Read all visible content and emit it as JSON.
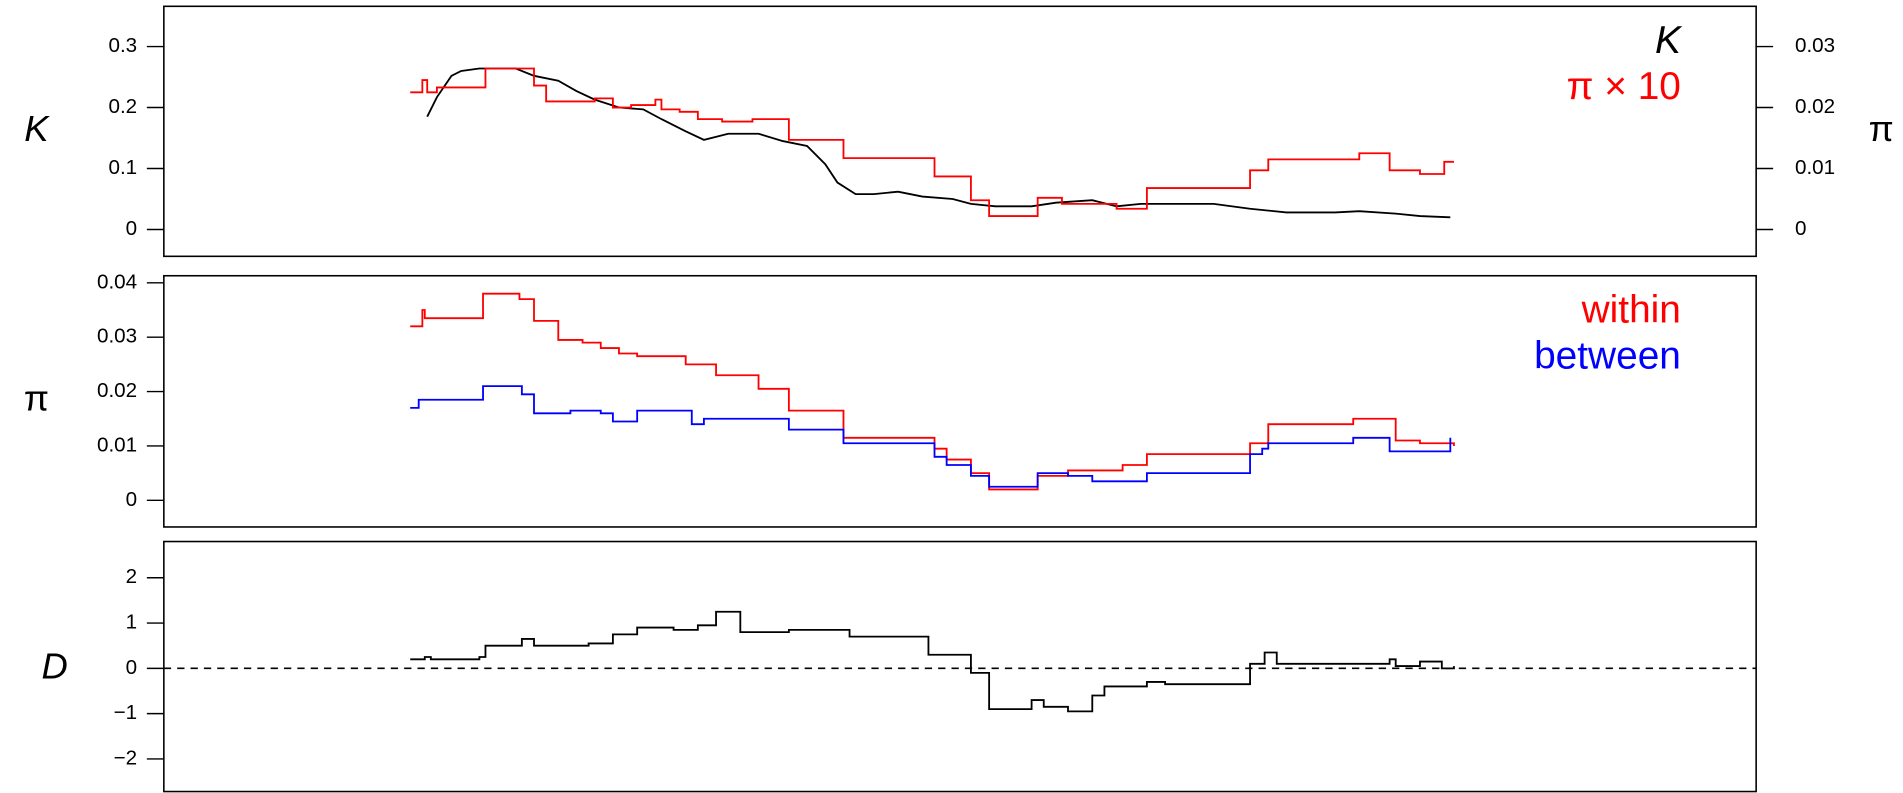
{
  "chart_data": [
    {
      "type": "line",
      "ylabel": "K",
      "y2label": "π",
      "xlim": [
        0,
        1312
      ],
      "ylim": [
        -0.044,
        0.366
      ],
      "yticks": [
        0,
        0.1,
        0.2,
        0.3
      ],
      "y2lim": [
        -0.0044,
        0.0366
      ],
      "y2ticks": [
        0,
        0.01,
        0.02,
        0.03
      ],
      "legend": "upper right",
      "series": [
        {
          "name": "K",
          "color": "#000000",
          "steps": false,
          "x": [
            217,
            225,
            237,
            245,
            260,
            290,
            305,
            325,
            340,
            355,
            375,
            395,
            410,
            430,
            445,
            465,
            490,
            510,
            530,
            545,
            555,
            570,
            585,
            605,
            625,
            650,
            665,
            685,
            715,
            735,
            765,
            785,
            805,
            865,
            895,
            925,
            965,
            985,
            1015,
            1035,
            1060
          ],
          "values": [
            0.185,
            0.217,
            0.252,
            0.26,
            0.264,
            0.264,
            0.252,
            0.244,
            0.227,
            0.213,
            0.2,
            0.197,
            0.181,
            0.161,
            0.147,
            0.157,
            0.157,
            0.145,
            0.137,
            0.107,
            0.077,
            0.058,
            0.058,
            0.062,
            0.054,
            0.05,
            0.042,
            0.038,
            0.038,
            0.044,
            0.048,
            0.038,
            0.042,
            0.042,
            0.034,
            0.028,
            0.028,
            0.03,
            0.026,
            0.022,
            0.02
          ]
        },
        {
          "name": "π × 10",
          "color": "#ff0000",
          "axis": "y2",
          "steps": true,
          "x": [
            203,
            213,
            217,
            225,
            265,
            305,
            315,
            355,
            370,
            385,
            405,
            410,
            425,
            440,
            460,
            485,
            515,
            560,
            635,
            665,
            680,
            720,
            740,
            785,
            810,
            895,
            910,
            985,
            1010,
            1035,
            1055,
            1063
          ],
          "values": [
            0.0225,
            0.0245,
            0.0225,
            0.0233,
            0.0264,
            0.0236,
            0.021,
            0.0215,
            0.02,
            0.0204,
            0.0213,
            0.0197,
            0.0193,
            0.0181,
            0.0177,
            0.0181,
            0.0147,
            0.0117,
            0.0087,
            0.0048,
            0.0022,
            0.0052,
            0.0042,
            0.0034,
            0.0068,
            0.0097,
            0.0115,
            0.0125,
            0.0097,
            0.0091,
            0.0111,
            0.0111
          ]
        }
      ]
    },
    {
      "type": "line",
      "ylabel": "π",
      "xlim": [
        0,
        1312
      ],
      "ylim": [
        -0.0049,
        0.0413
      ],
      "yticks": [
        0,
        0.01,
        0.02,
        0.03,
        0.04
      ],
      "legend": "upper right",
      "series": [
        {
          "name": "within",
          "color": "#ff0000",
          "steps": true,
          "x": [
            203,
            213,
            215,
            263,
            293,
            305,
            325,
            345,
            360,
            375,
            390,
            430,
            455,
            490,
            515,
            560,
            635,
            645,
            665,
            680,
            720,
            745,
            790,
            810,
            895,
            910,
            980,
            1015,
            1035,
            1063
          ],
          "values": [
            0.032,
            0.035,
            0.0335,
            0.038,
            0.037,
            0.033,
            0.0295,
            0.029,
            0.028,
            0.027,
            0.0265,
            0.025,
            0.023,
            0.0205,
            0.0165,
            0.0115,
            0.0095,
            0.0075,
            0.005,
            0.002,
            0.0045,
            0.0055,
            0.0065,
            0.0085,
            0.0105,
            0.014,
            0.015,
            0.011,
            0.0105,
            0.01
          ]
        },
        {
          "name": "between",
          "color": "#0000ff",
          "steps": true,
          "x": [
            203,
            210,
            263,
            295,
            305,
            335,
            360,
            370,
            390,
            435,
            445,
            485,
            515,
            560,
            635,
            645,
            665,
            680,
            720,
            745,
            765,
            810,
            895,
            905,
            910,
            980,
            1010,
            1060
          ],
          "values": [
            0.017,
            0.0185,
            0.021,
            0.0195,
            0.016,
            0.0165,
            0.016,
            0.0145,
            0.0165,
            0.014,
            0.015,
            0.015,
            0.013,
            0.0105,
            0.008,
            0.0065,
            0.0045,
            0.0025,
            0.005,
            0.0045,
            0.0035,
            0.005,
            0.0085,
            0.0095,
            0.0105,
            0.0115,
            0.009,
            0.0115
          ]
        }
      ]
    },
    {
      "type": "line",
      "ylabel": "D",
      "xlim": [
        0,
        1312
      ],
      "ylim": [
        -2.72,
        2.8
      ],
      "yticks": [
        {
          "value": -2,
          "label": "−2"
        },
        {
          "value": -1,
          "label": "−1"
        },
        0,
        1,
        2
      ],
      "reference_line": {
        "y": 0,
        "style": "dashed"
      },
      "series": [
        {
          "color": "#000000",
          "steps": true,
          "x": [
            203,
            215,
            220,
            260,
            265,
            295,
            305,
            350,
            370,
            390,
            420,
            440,
            455,
            475,
            515,
            565,
            630,
            665,
            680,
            715,
            725,
            745,
            765,
            775,
            810,
            825,
            895,
            907,
            917,
            1010,
            1015,
            1035,
            1053,
            1063
          ],
          "values": [
            0.2,
            0.25,
            0.2,
            0.25,
            0.5,
            0.65,
            0.5,
            0.55,
            0.75,
            0.9,
            0.85,
            0.95,
            1.25,
            0.8,
            0.85,
            0.7,
            0.3,
            -0.1,
            -0.9,
            -0.7,
            -0.85,
            -0.95,
            -0.6,
            -0.4,
            -0.3,
            -0.35,
            0.1,
            0.35,
            0.1,
            0.2,
            0.05,
            0.15,
            0,
            0.05
          ]
        }
      ]
    }
  ]
}
